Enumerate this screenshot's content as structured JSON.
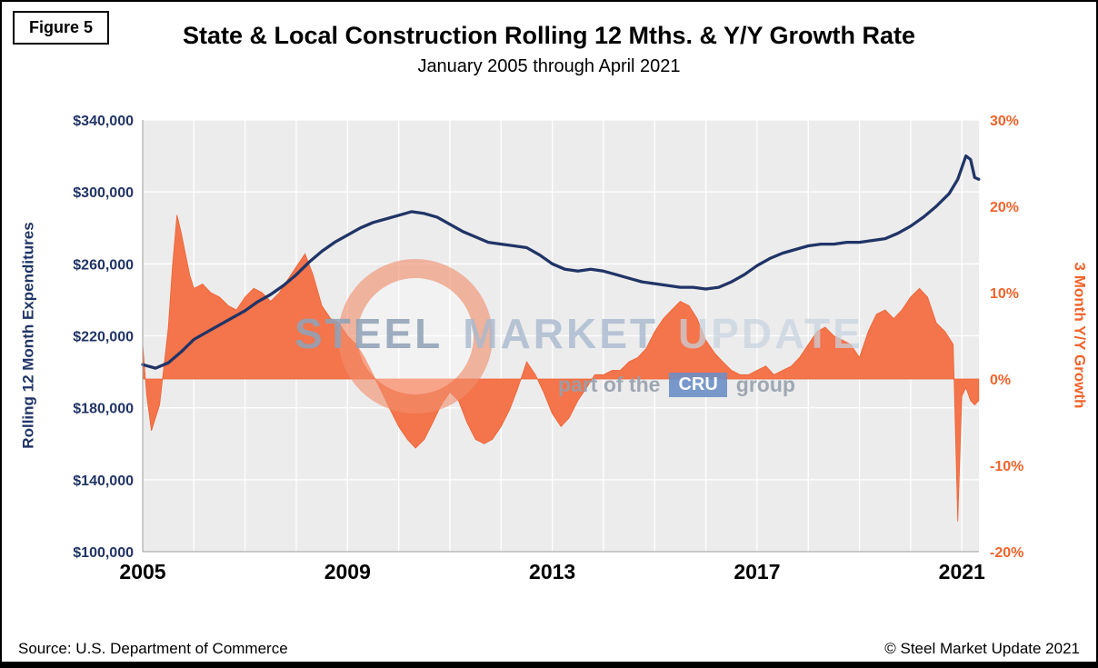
{
  "figure_label": "Figure 5",
  "title": "State & Local Construction Rolling 12 Mths. & Y/Y Growth Rate",
  "subtitle": "January 2005 through April 2021",
  "footer": {
    "source": "Source: U.S. Department of Commerce",
    "copyright": "© Steel Market Update 2021"
  },
  "watermark": {
    "w1": "STEEL",
    "w2": "MARKET",
    "w3": "UPDATE",
    "p1": "part of the",
    "p2": "CRU",
    "p3": "group"
  },
  "colors": {
    "navy": "#203466",
    "orange_fill": "#f4744b",
    "orange_stroke": "#ed6436",
    "orange_text": "#f2632b",
    "plot_bg": "#ececec",
    "grid": "#ffffff",
    "axis_line": "#9a9a9a",
    "x_label": "#000000"
  },
  "chart_data": {
    "type": "line+area",
    "title": "State & Local Construction Rolling 12 Mths. & Y/Y Growth Rate",
    "subtitle": "January 2005 through April 2021",
    "x_range": [
      2005,
      2021.333
    ],
    "x_ticks": [
      2005,
      2009,
      2013,
      2017,
      2021
    ],
    "x_tick_labels": [
      "2005",
      "2009",
      "2013",
      "2017",
      "2021"
    ],
    "grid": true,
    "legend": "none",
    "left_axis": {
      "label": "Rolling 12 Month Expenditures",
      "min": 100000,
      "max": 340000,
      "tick_values": [
        340000,
        300000,
        260000,
        220000,
        180000,
        140000,
        100000
      ],
      "tick_labels": [
        "$340,000",
        "$300,000",
        "$260,000",
        "$220,000",
        "$180,000",
        "$140,000",
        "$100,000"
      ]
    },
    "right_axis": {
      "label": "3 Month Y/Y Growth",
      "min": -20,
      "max": 30,
      "tick_values": [
        30,
        20,
        10,
        0,
        -10,
        -20
      ],
      "tick_labels": [
        "30%",
        "20%",
        "10%",
        "0%",
        "-10%",
        "-20%"
      ]
    },
    "series": [
      {
        "name": "Rolling 12 Month Expenditures",
        "type": "line",
        "axis": "left",
        "color": "#203466",
        "x": [
          2005.0,
          2005.25,
          2005.5,
          2005.75,
          2006.0,
          2006.25,
          2006.5,
          2006.75,
          2007.0,
          2007.25,
          2007.5,
          2007.75,
          2008.0,
          2008.25,
          2008.5,
          2008.75,
          2009.0,
          2009.25,
          2009.5,
          2009.75,
          2010.0,
          2010.25,
          2010.5,
          2010.75,
          2011.0,
          2011.25,
          2011.5,
          2011.75,
          2012.0,
          2012.25,
          2012.5,
          2012.75,
          2013.0,
          2013.25,
          2013.5,
          2013.75,
          2014.0,
          2014.25,
          2014.5,
          2014.75,
          2015.0,
          2015.25,
          2015.5,
          2015.75,
          2016.0,
          2016.25,
          2016.5,
          2016.75,
          2017.0,
          2017.25,
          2017.5,
          2017.75,
          2018.0,
          2018.25,
          2018.5,
          2018.75,
          2019.0,
          2019.25,
          2019.5,
          2019.75,
          2020.0,
          2020.25,
          2020.5,
          2020.75,
          2020.92,
          2021.08,
          2021.17,
          2021.25,
          2021.33
        ],
        "y": [
          204000,
          202000,
          205000,
          211000,
          218000,
          222000,
          226000,
          230000,
          234000,
          239000,
          243000,
          248000,
          254000,
          261000,
          267000,
          272000,
          276000,
          280000,
          283000,
          285000,
          287000,
          289000,
          288000,
          286000,
          282000,
          278000,
          275000,
          272000,
          271000,
          270000,
          269000,
          265000,
          260000,
          257000,
          256000,
          257000,
          256000,
          254000,
          252000,
          250000,
          249000,
          248000,
          247000,
          247000,
          246000,
          247000,
          250000,
          254000,
          259000,
          263000,
          266000,
          268000,
          270000,
          271000,
          271000,
          272000,
          272000,
          273000,
          274000,
          277000,
          281000,
          286000,
          292000,
          299000,
          307000,
          320000,
          318000,
          308000,
          307000
        ]
      },
      {
        "name": "3 Month Y/Y Growth",
        "type": "area",
        "axis": "right",
        "color": "#f4744b",
        "x": [
          2005.0,
          2005.08,
          2005.17,
          2005.33,
          2005.5,
          2005.58,
          2005.67,
          2005.75,
          2005.92,
          2006.0,
          2006.17,
          2006.33,
          2006.5,
          2006.67,
          2006.83,
          2007.0,
          2007.17,
          2007.33,
          2007.5,
          2007.67,
          2007.83,
          2008.0,
          2008.17,
          2008.33,
          2008.5,
          2008.67,
          2008.83,
          2009.0,
          2009.17,
          2009.33,
          2009.5,
          2009.67,
          2009.83,
          2010.0,
          2010.17,
          2010.33,
          2010.5,
          2010.67,
          2010.83,
          2011.0,
          2011.17,
          2011.33,
          2011.5,
          2011.67,
          2011.83,
          2012.0,
          2012.17,
          2012.33,
          2012.5,
          2012.67,
          2012.83,
          2013.0,
          2013.17,
          2013.33,
          2013.5,
          2013.67,
          2013.83,
          2014.0,
          2014.17,
          2014.33,
          2014.5,
          2014.67,
          2014.83,
          2015.0,
          2015.17,
          2015.33,
          2015.5,
          2015.67,
          2015.83,
          2016.0,
          2016.17,
          2016.33,
          2016.5,
          2016.67,
          2016.83,
          2017.0,
          2017.17,
          2017.33,
          2017.5,
          2017.67,
          2017.83,
          2018.0,
          2018.17,
          2018.33,
          2018.5,
          2018.67,
          2018.83,
          2019.0,
          2019.17,
          2019.33,
          2019.5,
          2019.67,
          2019.83,
          2020.0,
          2020.17,
          2020.33,
          2020.5,
          2020.67,
          2020.83,
          2020.92,
          2021.0,
          2021.08,
          2021.17,
          2021.25,
          2021.33
        ],
        "y": [
          4,
          -2,
          -6,
          -3,
          6,
          13,
          19,
          17,
          12,
          10.5,
          11,
          10,
          9.5,
          8.5,
          8,
          9.5,
          10.5,
          10,
          9,
          10,
          11.5,
          13,
          14.5,
          12,
          8.5,
          7,
          6.5,
          5,
          4,
          2.5,
          0.5,
          -1.5,
          -3.5,
          -5.5,
          -7,
          -8,
          -7,
          -5,
          -3,
          -1.5,
          -2.5,
          -5,
          -7,
          -7.5,
          -7,
          -5.5,
          -3.5,
          -1,
          2,
          0.5,
          -1.5,
          -4,
          -5.5,
          -4.5,
          -2.5,
          -1,
          0.5,
          0.5,
          1,
          1,
          2,
          2.5,
          3.5,
          5.5,
          7,
          8,
          9,
          8.5,
          7,
          4.5,
          3,
          2,
          1,
          0.5,
          0.5,
          1,
          1.5,
          0.5,
          1,
          1.5,
          2.5,
          4,
          5.5,
          6,
          5,
          4.5,
          4,
          2.5,
          5.5,
          7.5,
          8,
          7,
          8,
          9.5,
          10.5,
          9.5,
          6.5,
          5.5,
          4,
          -16.5,
          -2,
          -1,
          -2.5,
          -3,
          -2.5
        ]
      }
    ]
  }
}
